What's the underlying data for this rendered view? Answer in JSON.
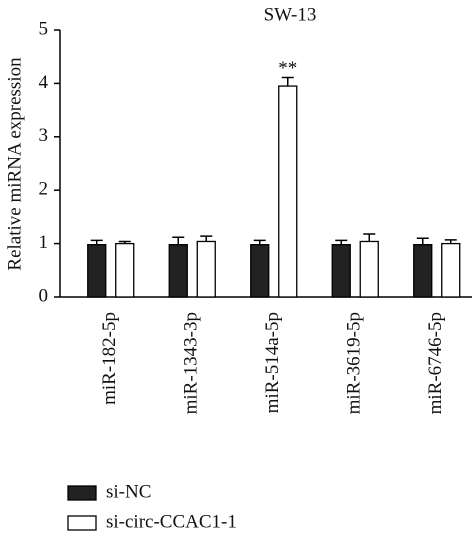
{
  "chart_data": {
    "type": "bar",
    "title": "SW-13",
    "y_label": "Relative miRNA expression",
    "categories": [
      "miR-182-5p",
      "miR-1343-3p",
      "miR-514a-5p",
      "miR-3619-5p",
      "miR-6746-5p"
    ],
    "series": [
      {
        "name": "si-NC",
        "color": "#222222",
        "values": [
          0.98,
          0.98,
          0.98,
          0.98,
          0.98
        ],
        "errors": [
          0.08,
          0.14,
          0.08,
          0.08,
          0.12
        ]
      },
      {
        "name": "si-circ-CCAC1-1",
        "color": "#ffffff",
        "values": [
          1.0,
          1.04,
          3.95,
          1.04,
          1.0
        ],
        "errors": [
          0.04,
          0.1,
          0.16,
          0.14,
          0.07
        ]
      }
    ],
    "annotations": [
      {
        "text": "**",
        "category": 2,
        "series": 1
      }
    ],
    "ylim": [
      0,
      5
    ],
    "yticks": [
      0,
      1,
      2,
      3,
      4,
      5
    ]
  }
}
